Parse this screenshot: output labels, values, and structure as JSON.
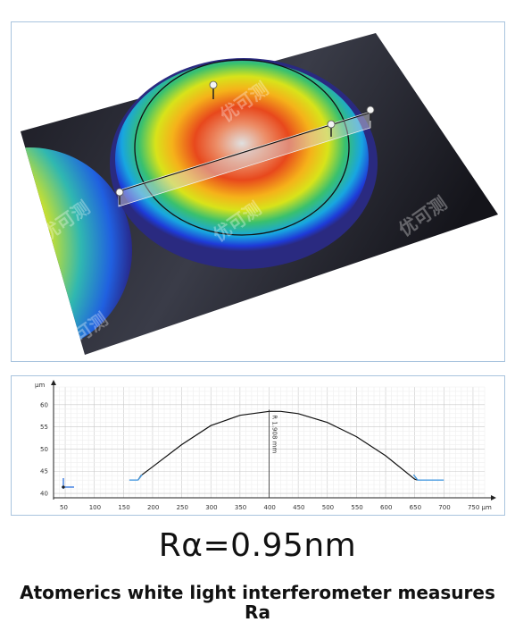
{
  "watermark_text": "优可测",
  "profile_chart": {
    "y_unit": "µm",
    "x_unit": "µm",
    "x_ticks": [
      50,
      100,
      150,
      200,
      250,
      300,
      350,
      400,
      450,
      500,
      550,
      600,
      650,
      700,
      750
    ],
    "y_ticks": [
      40,
      45,
      50,
      55,
      60
    ],
    "radius_annotation": "R 1.908 mm"
  },
  "chart_data": {
    "type": "line",
    "xlabel": "µm",
    "ylabel": "µm",
    "xlim": [
      30,
      770
    ],
    "ylim": [
      39,
      64
    ],
    "grid": true,
    "legend": "none",
    "series": [
      {
        "x": [
          160,
          175,
          180,
          200,
          250,
          300,
          350,
          400,
          420,
          450,
          500,
          550,
          600,
          650,
          655,
          700
        ],
        "y": [
          43,
          43,
          44,
          46,
          51,
          55.3,
          57.6,
          58.5,
          58.5,
          58,
          56,
          52.8,
          48.5,
          43.2,
          43,
          43
        ]
      }
    ]
  },
  "headline": "Rα=0.95nm",
  "caption_line1": "Atomerics white light interferometer measures",
  "caption_line2": "Ra",
  "colors": {
    "panel_border": "#a9c4de",
    "plot_line": "#111111",
    "baseline": "#4a9be0"
  }
}
